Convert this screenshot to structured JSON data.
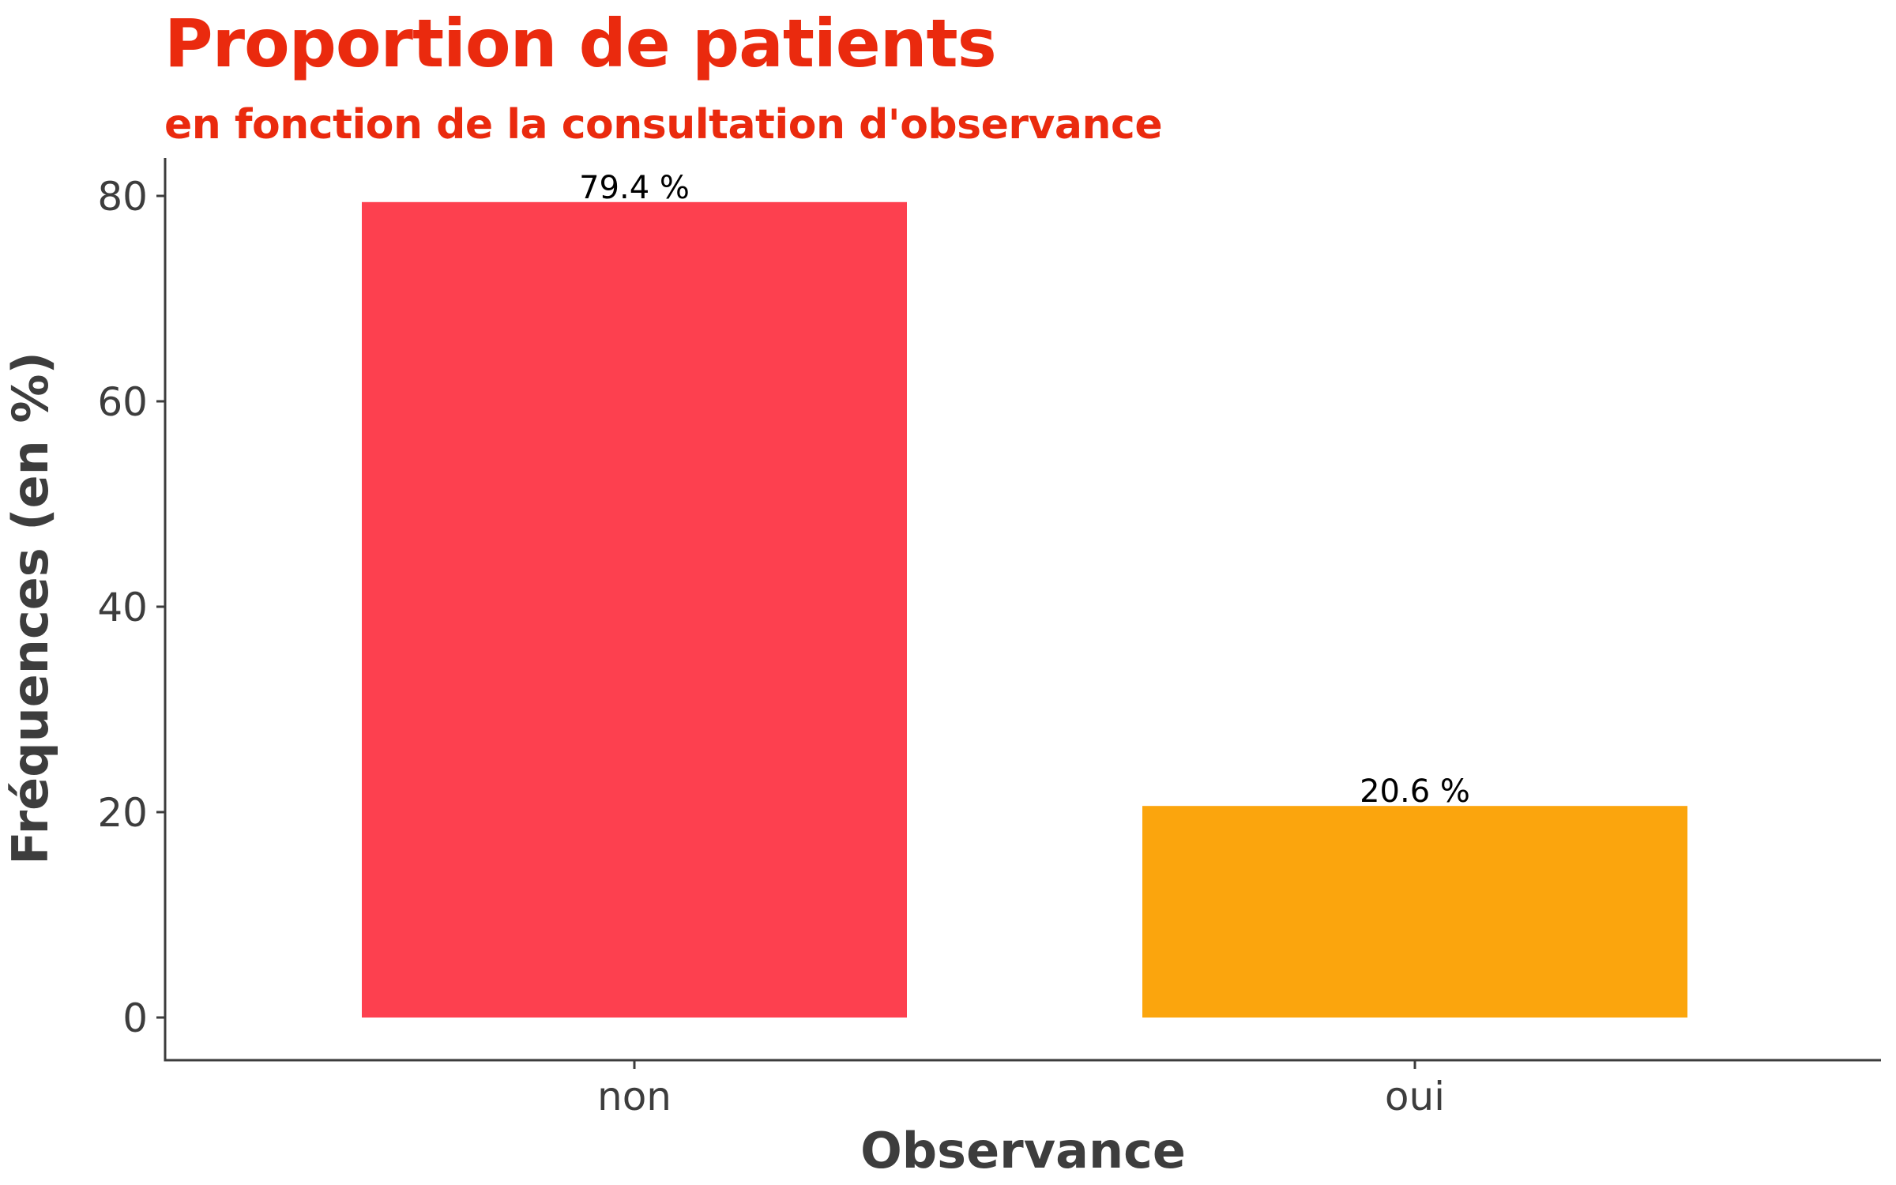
{
  "chart_data": {
    "type": "bar",
    "title": "Proportion de patients",
    "subtitle": "en fonction de la consultation d'observance",
    "xlabel": "Observance",
    "ylabel": "Fréquences (en %)",
    "categories": [
      "non",
      "oui"
    ],
    "values": [
      79.4,
      20.6
    ],
    "data_labels": [
      "79.4 %",
      "20.6 %"
    ],
    "colors": [
      "#fd404f",
      "#fba50d"
    ],
    "yticks": [
      0,
      20,
      40,
      60,
      80
    ],
    "ytick_labels": [
      "0",
      "20",
      "40",
      "60",
      "80"
    ],
    "ylim": [
      -4,
      83
    ],
    "grid": false,
    "legend": "none"
  },
  "colors": {
    "title": "#ea2a0e",
    "axis": "#3d3d3d"
  }
}
